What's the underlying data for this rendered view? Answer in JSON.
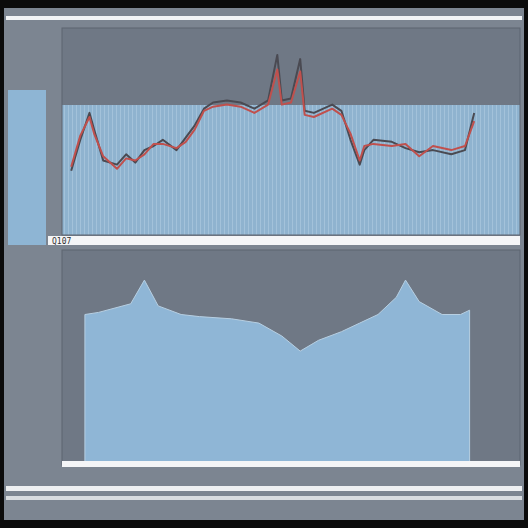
{
  "chart_data": [
    {
      "type": "line",
      "annotation": "Q107",
      "grid": false,
      "tick_labels": false,
      "xlim": [
        0,
        100
      ],
      "ylim": [
        0,
        100
      ],
      "x": [
        2,
        4,
        6,
        7,
        9,
        12,
        14,
        16,
        18,
        20,
        22,
        25,
        27,
        29,
        31,
        33,
        36,
        39,
        42,
        45,
        47,
        48,
        50,
        52,
        53,
        55,
        59,
        61,
        63,
        65,
        66,
        68,
        72,
        75,
        78,
        81,
        85,
        88,
        90
      ],
      "series": [
        {
          "color": "#4a4a52",
          "values": [
            31,
            46,
            59,
            51,
            36,
            34,
            39,
            35,
            41,
            43,
            46,
            41,
            47,
            53,
            61,
            64,
            65,
            64,
            61,
            65,
            87,
            65,
            66,
            85,
            60,
            59,
            63,
            60,
            46,
            34,
            41,
            46,
            45,
            42,
            40,
            41,
            39,
            41,
            59
          ]
        },
        {
          "color": "#c0504d",
          "values": [
            33,
            48,
            57,
            49,
            38,
            32,
            37,
            36,
            39,
            44,
            44,
            42,
            45,
            51,
            60,
            62,
            63,
            62,
            59,
            63,
            80,
            63,
            64,
            79,
            58,
            57,
            61,
            58,
            49,
            36,
            43,
            44,
            43,
            44,
            38,
            43,
            41,
            43,
            55
          ]
        }
      ]
    },
    {
      "type": "area",
      "grid": false,
      "tick_labels": false,
      "color": "#8fb6d6",
      "xlim": [
        0,
        100
      ],
      "ylim": [
        0,
        100
      ],
      "x": [
        5,
        8,
        15,
        18,
        21,
        26,
        30,
        37,
        43,
        48,
        52,
        56,
        61,
        65,
        69,
        73,
        75,
        78,
        83,
        87,
        89
      ],
      "values": [
        70,
        71,
        75,
        86,
        74,
        70,
        69,
        68,
        66,
        60,
        53,
        58,
        62,
        66,
        70,
        78,
        86,
        76,
        70,
        70,
        72
      ]
    }
  ]
}
